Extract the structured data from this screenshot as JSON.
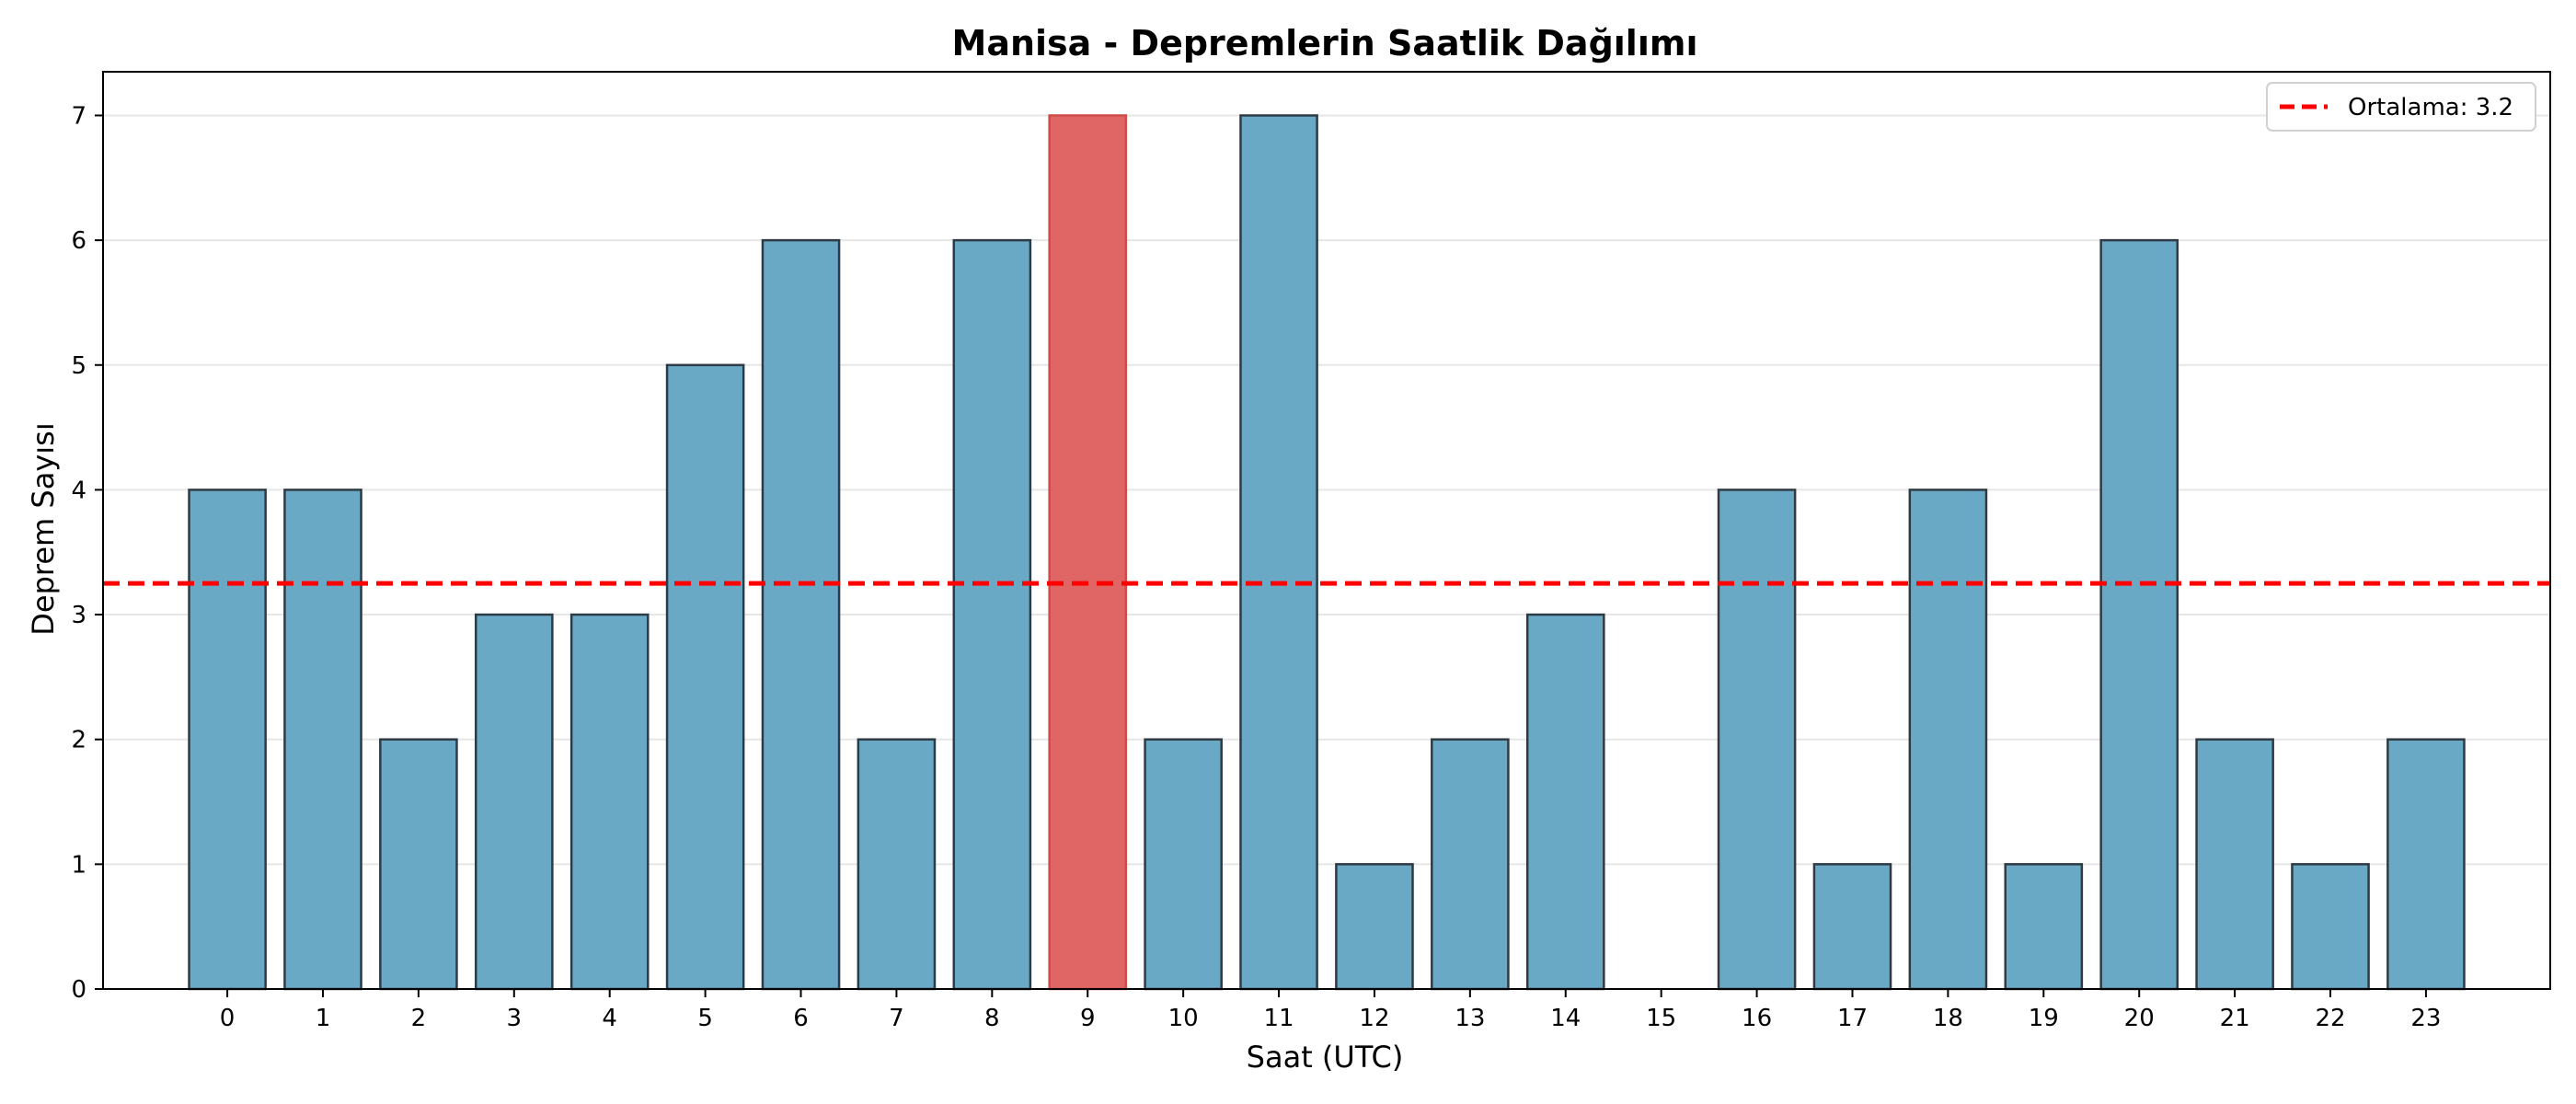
{
  "chart_data": {
    "type": "bar",
    "title": "Manisa - Depremlerin Saatlik Dağılımı",
    "xlabel": "Saat (UTC)",
    "ylabel": "Deprem Sayısı",
    "categories": [
      "0",
      "1",
      "2",
      "3",
      "4",
      "5",
      "6",
      "7",
      "8",
      "9",
      "10",
      "11",
      "12",
      "13",
      "14",
      "15",
      "16",
      "17",
      "18",
      "19",
      "20",
      "21",
      "22",
      "23"
    ],
    "values": [
      4,
      4,
      2,
      3,
      3,
      5,
      6,
      2,
      6,
      7,
      2,
      7,
      1,
      2,
      3,
      0,
      4,
      1,
      4,
      1,
      6,
      2,
      1,
      2
    ],
    "highlight_index": 9,
    "yticks": [
      0,
      1,
      2,
      3,
      4,
      5,
      6,
      7
    ],
    "ylim": [
      0,
      7.35
    ],
    "xlim": [
      -1.3,
      24.3
    ],
    "mean_line": {
      "value": 3.25,
      "label": "Ortalama: 3.2",
      "color": "#ff0000",
      "style": "dashed"
    },
    "grid": "y",
    "legend_position": "top-right",
    "colors": {
      "bar": "#6aa9c6",
      "highlight": "#e06666",
      "edge": "#2f3b44",
      "grid": "#e6e6e6",
      "mean": "#ff0000"
    }
  }
}
